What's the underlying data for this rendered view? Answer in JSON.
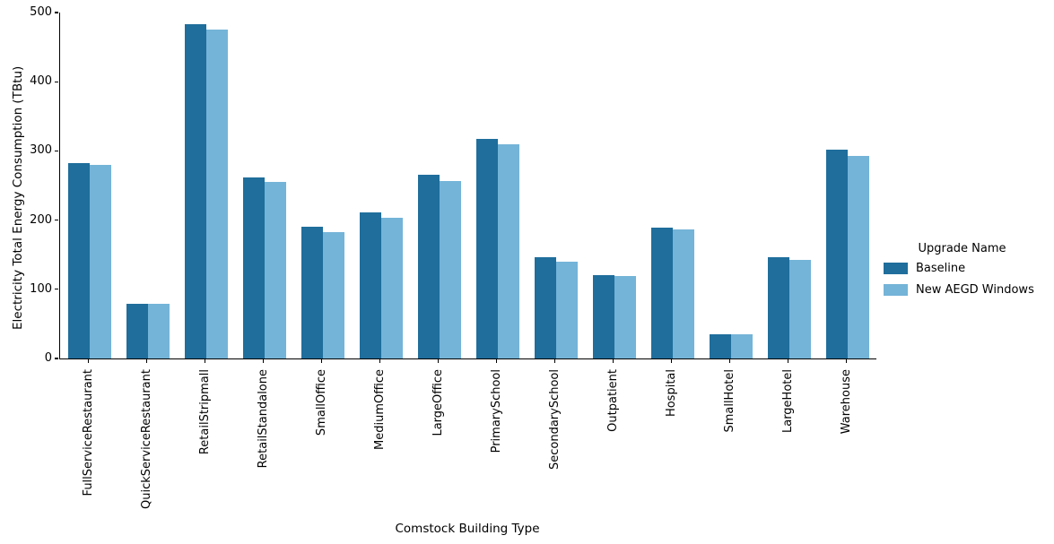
{
  "figure": {
    "background": "#ffffff",
    "axis_color": "#000000",
    "text_color": "#000000"
  },
  "chart_data": {
    "type": "bar",
    "title": "",
    "xlabel": "Comstock Building Type",
    "ylabel": "Electricity Total Energy Consumption (TBtu)",
    "categories": [
      "FullServiceRestaurant",
      "QuickServiceRestaurant",
      "RetailStripmall",
      "RetailStandalone",
      "SmallOffice",
      "MediumOffice",
      "LargeOffice",
      "PrimarySchool",
      "SecondarySchool",
      "Outpatient",
      "Hospital",
      "SmallHotel",
      "LargeHotel",
      "Warehouse"
    ],
    "series": [
      {
        "name": "Baseline",
        "color": "#1f6e9c",
        "values": [
          282,
          79,
          483,
          262,
          190,
          211,
          265,
          317,
          146,
          121,
          189,
          35,
          147,
          302
        ]
      },
      {
        "name": "New AEGD Windows",
        "color": "#74b4d8",
        "values": [
          280,
          79,
          475,
          255,
          183,
          203,
          257,
          309,
          140,
          119,
          187,
          35,
          142,
          293
        ]
      }
    ],
    "ylim": [
      0,
      500
    ],
    "yticks": [
      0,
      100,
      200,
      300,
      400,
      500
    ],
    "grid": false,
    "legend": {
      "title": "Upgrade Name",
      "position": "center right"
    }
  }
}
